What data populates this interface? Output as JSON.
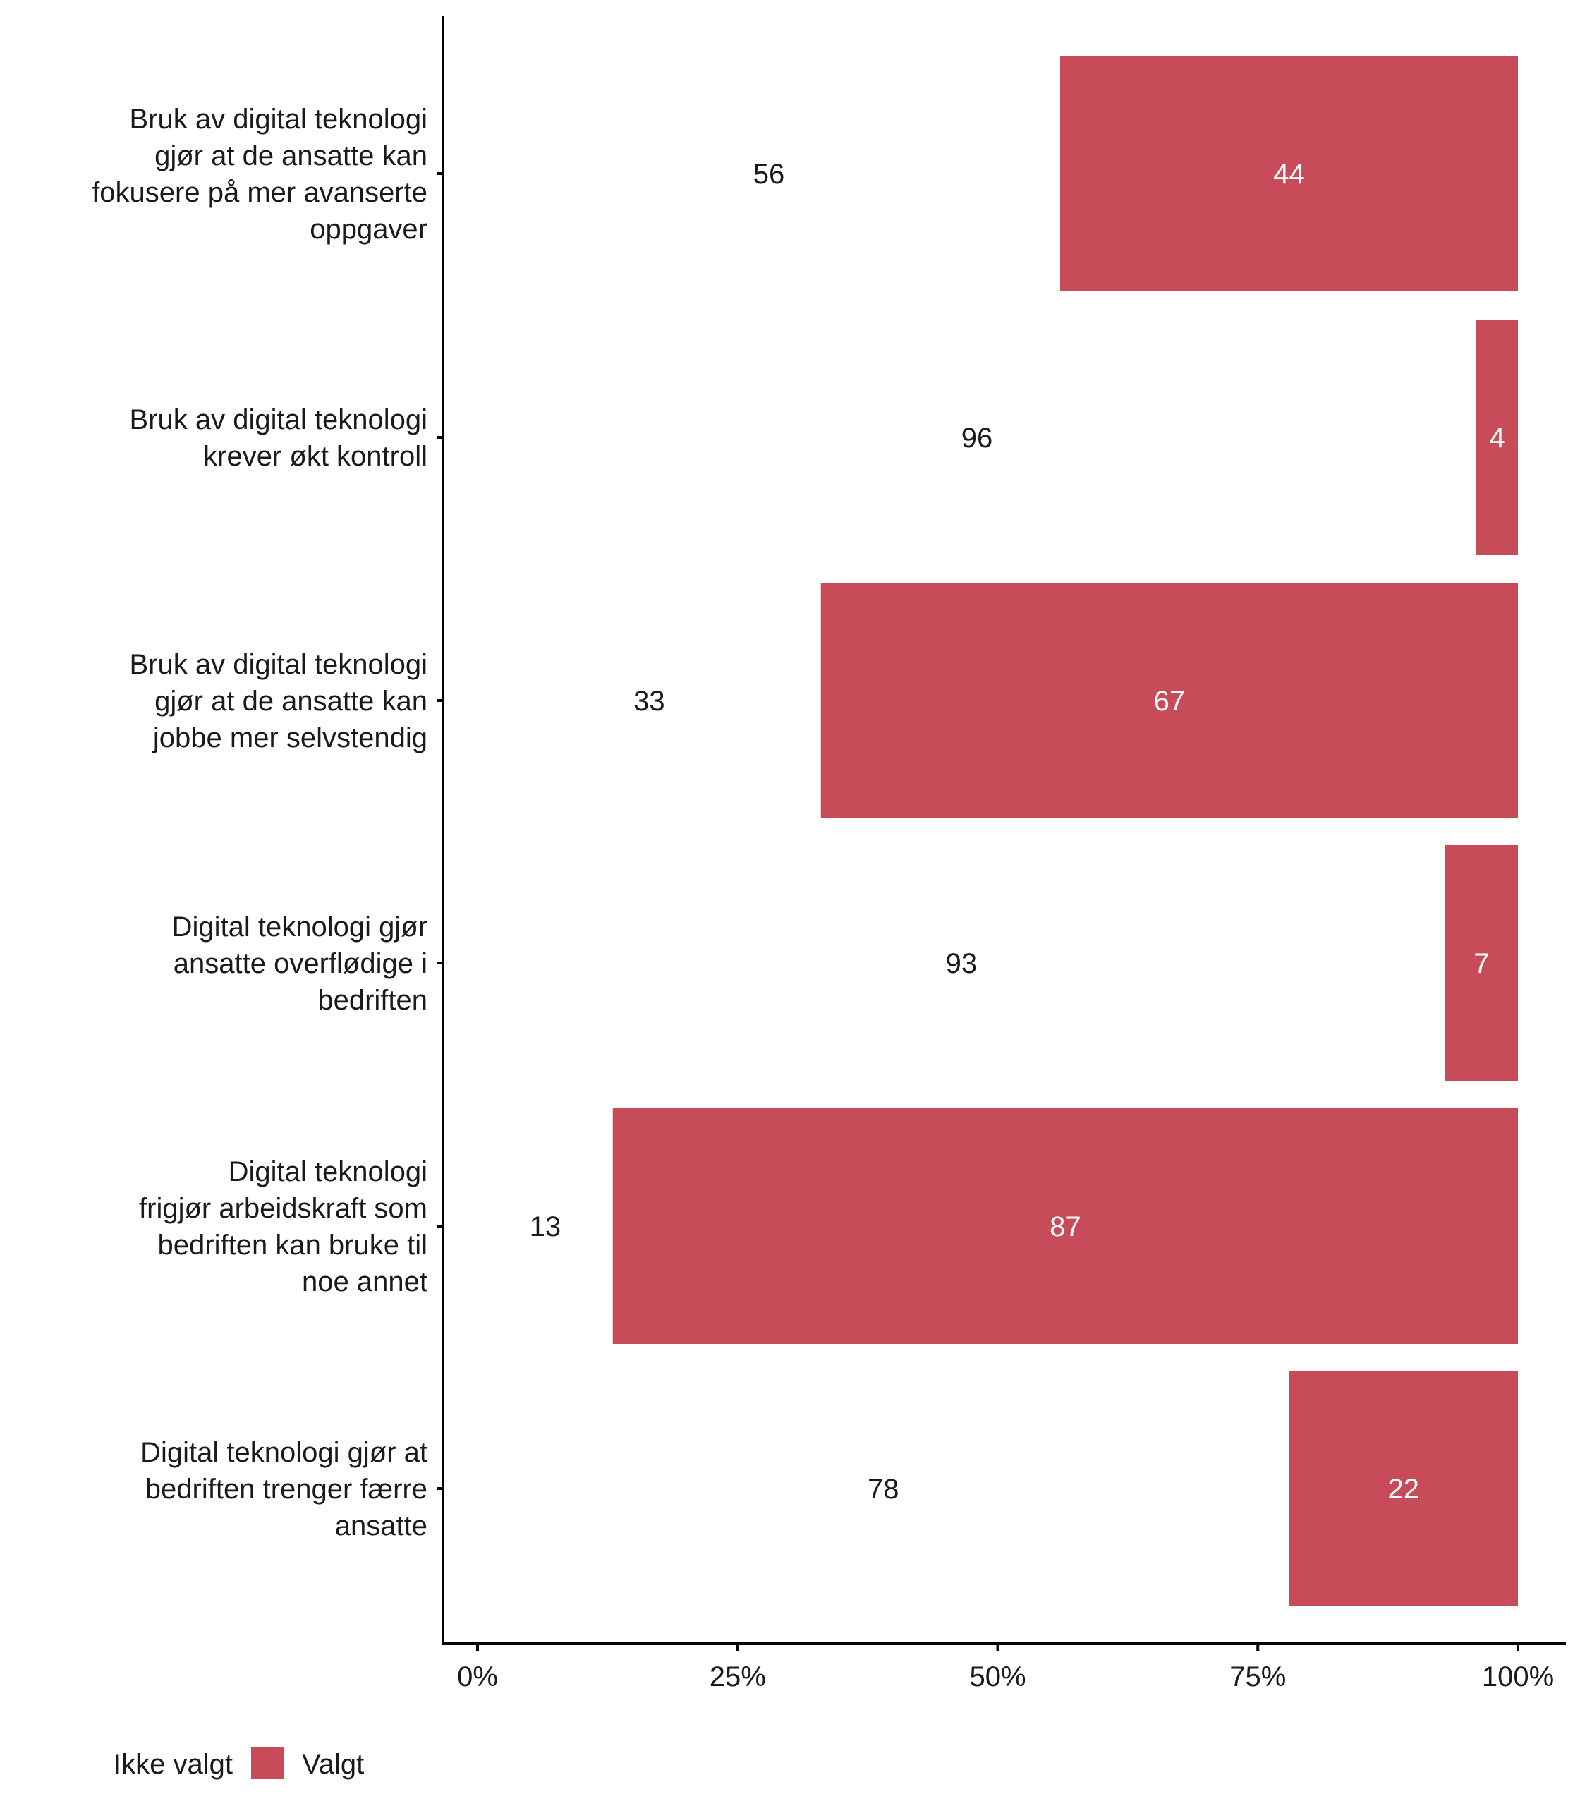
{
  "chart_data": {
    "type": "bar",
    "orientation": "horizontal",
    "stacked": true,
    "title": "",
    "xlabel": "",
    "ylabel": "",
    "xlim": [
      0,
      100
    ],
    "x_ticks": [
      "0%",
      "25%",
      "50%",
      "75%",
      "100%"
    ],
    "x_tick_values": [
      0,
      25,
      50,
      75,
      100
    ],
    "grid": false,
    "legend_position": "bottom-left",
    "categories": [
      "Bruk av digital teknologi gjør at de ansatte kan fokusere på mer avanserte oppgaver",
      "Bruk av digital teknologi krever økt kontroll",
      "Bruk av digital teknologi gjør at de ansatte kan jobbe mer selvstendig",
      "Digital teknologi gjør ansatte overflødige i bedriften",
      "Digital teknologi frigjør arbeidskraft som bedriften kan bruke til noe annet",
      "Digital teknologi gjør at bedriften trenger færre ansatte"
    ],
    "category_lines": [
      [
        "Bruk av digital teknologi",
        "gjør at de ansatte kan",
        "fokusere på mer avanserte",
        "oppgaver"
      ],
      [
        "Bruk av digital teknologi",
        "krever økt kontroll"
      ],
      [
        "Bruk av digital teknologi",
        "gjør at de ansatte kan",
        "jobbe mer selvstendig"
      ],
      [
        "Digital teknologi gjør",
        "ansatte overflødige i",
        "bedriften"
      ],
      [
        "Digital teknologi",
        "frigjør arbeidskraft som",
        "bedriften kan bruke til",
        "noe annet"
      ],
      [
        "Digital teknologi gjør at",
        "bedriften trenger færre",
        "ansatte"
      ]
    ],
    "series": [
      {
        "name": "Ikke valgt",
        "color": "#ffffff",
        "label_color": "#1a1a1a",
        "values": [
          56,
          96,
          33,
          93,
          13,
          78
        ]
      },
      {
        "name": "Valgt",
        "color": "#c84b5a",
        "label_color": "#ffffff",
        "values": [
          44,
          4,
          67,
          7,
          87,
          22
        ]
      }
    ]
  }
}
